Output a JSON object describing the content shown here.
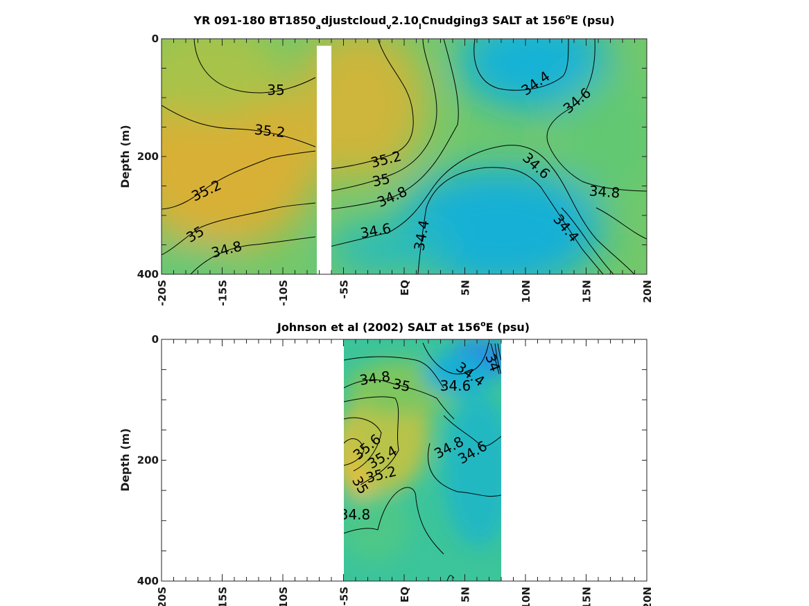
{
  "chart_data": [
    {
      "type": "heatmap",
      "title_parts": {
        "p1": "YR 091-180 BT1850",
        "s1": "a",
        "p2": "djustcloud",
        "s2": "v",
        "p3": "2.10",
        "s3": "l",
        "p4": "Cnudging3 SALT at 156",
        "sup": "o",
        "p5": "E (psu)"
      },
      "ylabel": "Depth (m)",
      "xlim": [
        -20,
        20
      ],
      "ylim": [
        0,
        400
      ],
      "x_ticklabels": [
        "-20S",
        "-15S",
        "-10S",
        "-5S",
        "EQ",
        "5N",
        "10N",
        "15N",
        "20N"
      ],
      "y_ticklabels": [
        "0",
        "200",
        "400"
      ],
      "missing_band_lat": [
        -7.2,
        -6.0
      ],
      "contour_labels": [
        "35",
        "35.2",
        "35.2",
        "35",
        "34.8",
        "35.2",
        "35",
        "34.8",
        "34.6",
        "34.4",
        "34.4",
        "34.6",
        "34.6",
        "34.8",
        "34.4"
      ],
      "colors": {
        "high": "#e0b030",
        "mid": "#4fc78a",
        "low": "#10b0d8"
      }
    },
    {
      "type": "heatmap",
      "title_parts": {
        "p1": "Johnson et al (2002) SALT at 156",
        "sup": "o",
        "p2": "E (psu)"
      },
      "ylabel": "Depth (m)",
      "xlim": [
        -20,
        20
      ],
      "ylim": [
        0,
        400
      ],
      "data_extent_lat": [
        -5,
        8
      ],
      "x_ticklabels": [
        "-20S",
        "-15S",
        "-10S",
        "-5S",
        "EQ",
        "5N",
        "10N",
        "15N",
        "20N"
      ],
      "y_ticklabels": [
        "0",
        "200",
        "400"
      ],
      "contour_labels": [
        "34.8",
        "35",
        "34.4",
        "34.6",
        "34",
        "35.6",
        "35.4",
        "35.2",
        "35",
        "34.8",
        "34.6",
        "34.8"
      ],
      "colors": {
        "high": "#f8c030",
        "mid": "#3cc39a",
        "low": "#3a7ce6"
      }
    }
  ]
}
